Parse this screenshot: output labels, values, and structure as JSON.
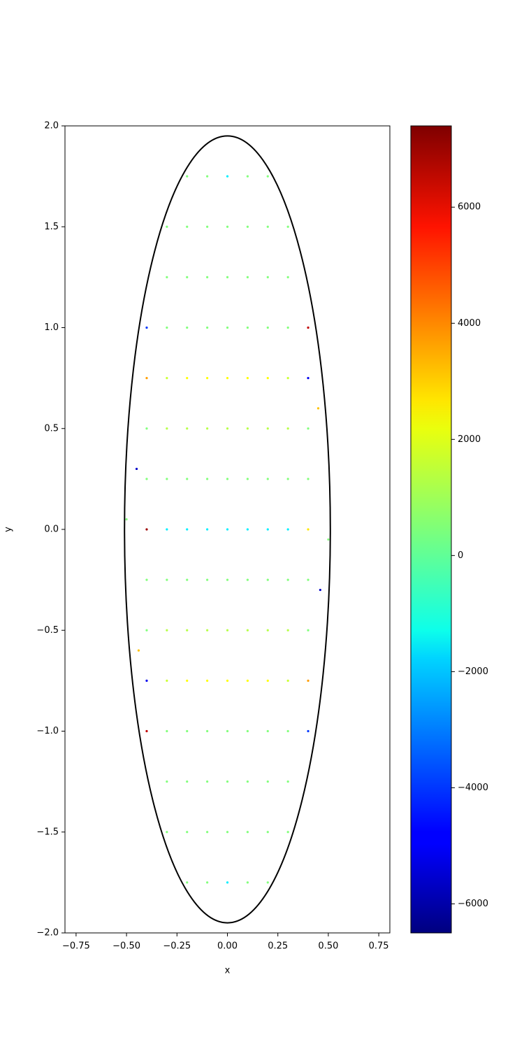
{
  "chart_data": {
    "type": "scatter",
    "xlabel": "x",
    "ylabel": "y",
    "xlim": [
      -0.805,
      0.805
    ],
    "ylim": [
      -2,
      2
    ],
    "xticks": [
      {
        "value": -0.75,
        "label": "−0.75"
      },
      {
        "value": -0.5,
        "label": "−0.50"
      },
      {
        "value": -0.25,
        "label": "−0.25"
      },
      {
        "value": 0,
        "label": "0.00"
      },
      0.25,
      {
        "value": 0.5,
        "label": "0.50"
      },
      0.75
    ],
    "yticks": [
      {
        "value": -2,
        "label": "−2.0"
      },
      {
        "value": -1.5,
        "label": "−1.5"
      },
      {
        "value": -1,
        "label": "−1.0"
      },
      {
        "value": -0.5,
        "label": "−0.5"
      },
      {
        "value": 0,
        "label": "0.0"
      },
      0.5,
      {
        "value": 1,
        "label": "1.0"
      },
      1.5,
      {
        "value": 2,
        "label": "2.0"
      }
    ],
    "colormap": "jet",
    "clim": [
      -6500,
      7400
    ],
    "cticks": [
      {
        "value": -6000,
        "label": "−6000"
      },
      {
        "value": -4000,
        "label": "−4000"
      },
      {
        "value": -2000,
        "label": "−2000"
      },
      0,
      2000,
      4000,
      6000
    ],
    "ellipse": {
      "a": 0.51,
      "b": 1.95,
      "color": "#000000"
    },
    "rows": [
      {
        "y": 1.75,
        "x": [
          -0.2,
          -0.1,
          0,
          0.1,
          0.2
        ],
        "c": [
          500,
          500,
          -1500,
          500,
          500
        ]
      },
      {
        "y": 1.5,
        "x": [
          -0.3,
          -0.2,
          -0.1,
          0,
          0.1,
          0.2,
          0.3
        ],
        "c": [
          500,
          500,
          500,
          500,
          500,
          500,
          500
        ]
      },
      {
        "y": 1.25,
        "x": [
          -0.3,
          -0.2,
          -0.1,
          0,
          0.1,
          0.2,
          0.3
        ],
        "c": [
          500,
          500,
          500,
          500,
          500,
          500,
          500
        ]
      },
      {
        "y": 1.0,
        "x": [
          -0.4,
          -0.3,
          -0.2,
          -0.1,
          0,
          0.1,
          0.2,
          0.3,
          0.4
        ],
        "c": [
          -4000,
          500,
          500,
          500,
          500,
          500,
          500,
          500,
          6500
        ]
      },
      {
        "y": 0.75,
        "x": [
          -0.4,
          -0.3,
          -0.2,
          -0.1,
          0,
          0.1,
          0.2,
          0.3,
          0.4
        ],
        "c": [
          3500,
          1500,
          2200,
          2200,
          2200,
          2200,
          2200,
          1500,
          -5000
        ]
      },
      {
        "y": 0.5,
        "x": [
          -0.4,
          -0.3,
          -0.2,
          -0.1,
          0,
          0.1,
          0.2,
          0.3,
          0.4
        ],
        "c": [
          500,
          1200,
          1200,
          1200,
          1200,
          1200,
          1200,
          1200,
          500
        ]
      },
      {
        "y": 0.25,
        "x": [
          -0.4,
          -0.3,
          -0.2,
          -0.1,
          0,
          0.1,
          0.2,
          0.3,
          0.4
        ],
        "c": [
          500,
          500,
          500,
          500,
          500,
          500,
          500,
          500,
          500
        ]
      },
      {
        "y": 0,
        "x": [
          -0.4,
          -0.3,
          -0.2,
          -0.1,
          0,
          0.1,
          0.2,
          0.3,
          0.4
        ],
        "c": [
          7000,
          -1500,
          -1500,
          -1500,
          -1500,
          -1500,
          -1500,
          -1500,
          2500
        ]
      },
      {
        "y": -0.25,
        "x": [
          -0.4,
          -0.3,
          -0.2,
          -0.1,
          0,
          0.1,
          0.2,
          0.3,
          0.4
        ],
        "c": [
          500,
          500,
          500,
          500,
          500,
          500,
          500,
          500,
          500
        ]
      },
      {
        "y": -0.5,
        "x": [
          -0.4,
          -0.3,
          -0.2,
          -0.1,
          0,
          0.1,
          0.2,
          0.3,
          0.4
        ],
        "c": [
          500,
          1200,
          1200,
          1200,
          1200,
          1200,
          1200,
          1200,
          500
        ]
      },
      {
        "y": -0.75,
        "x": [
          -0.4,
          -0.3,
          -0.2,
          -0.1,
          0,
          0.1,
          0.2,
          0.3,
          0.4
        ],
        "c": [
          -5000,
          1500,
          2200,
          2200,
          2200,
          2200,
          2200,
          1500,
          3500
        ]
      },
      {
        "y": -1.0,
        "x": [
          -0.4,
          -0.3,
          -0.2,
          -0.1,
          0,
          0.1,
          0.2,
          0.3,
          0.4
        ],
        "c": [
          6500,
          500,
          500,
          500,
          500,
          500,
          500,
          500,
          -4000
        ]
      },
      {
        "y": -1.25,
        "x": [
          -0.3,
          -0.2,
          -0.1,
          0,
          0.1,
          0.2,
          0.3
        ],
        "c": [
          500,
          500,
          500,
          500,
          500,
          500,
          500
        ]
      },
      {
        "y": -1.5,
        "x": [
          -0.3,
          -0.2,
          -0.1,
          0,
          0.1,
          0.2,
          0.3
        ],
        "c": [
          500,
          500,
          500,
          500,
          500,
          500,
          500
        ]
      },
      {
        "y": -1.75,
        "x": [
          -0.2,
          -0.1,
          0,
          0.1,
          0.2
        ],
        "c": [
          500,
          500,
          -1500,
          500,
          500
        ]
      },
      {
        "y": 0.3,
        "x": [
          -0.45
        ],
        "c": [
          -5500
        ]
      },
      {
        "y": -0.3,
        "x": [
          0.46
        ],
        "c": [
          -5500
        ]
      },
      {
        "y": -0.6,
        "x": [
          -0.44
        ],
        "c": [
          3000
        ]
      },
      {
        "y": 0.6,
        "x": [
          0.45
        ],
        "c": [
          3000
        ]
      },
      {
        "y": 0.05,
        "x": [
          -0.5
        ],
        "c": [
          500
        ]
      },
      {
        "y": -0.05,
        "x": [
          0.5
        ],
        "c": [
          500
        ]
      }
    ]
  }
}
